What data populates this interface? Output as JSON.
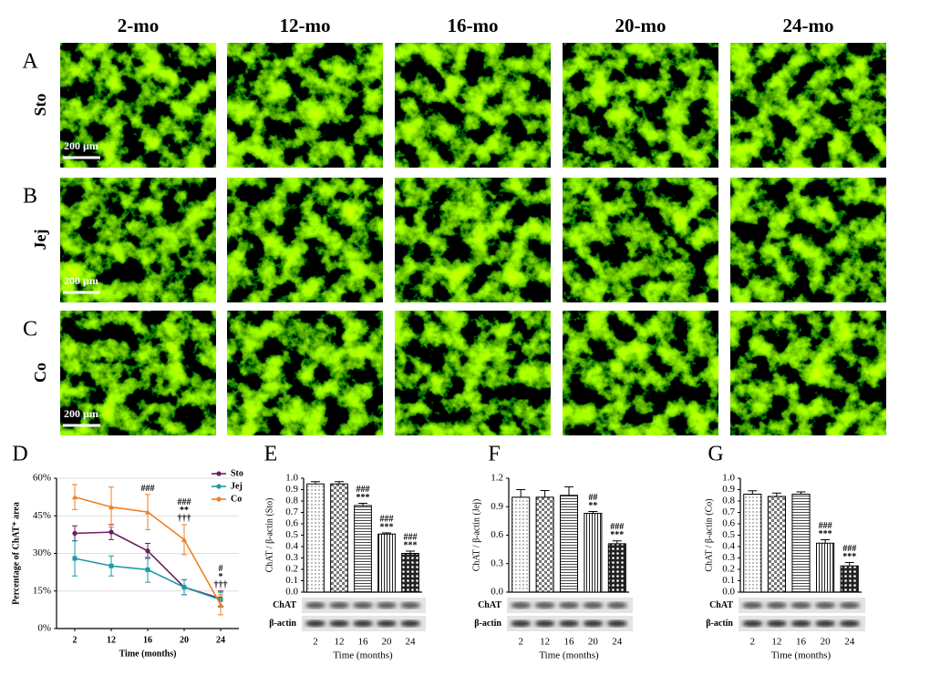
{
  "column_headers": [
    "2-mo",
    "12-mo",
    "16-mo",
    "20-mo",
    "24-mo"
  ],
  "rows": [
    {
      "letter": "A",
      "label": "Sto",
      "scale_bar": "200 µm"
    },
    {
      "letter": "B",
      "label": "Jej",
      "scale_bar": "200 µm"
    },
    {
      "letter": "C",
      "label": "Co",
      "scale_bar": "200 µm"
    }
  ],
  "chart_data": [
    {
      "type": "line",
      "panel": "D",
      "ylabel": "Percentage of ChAT⁺ area",
      "xlabel": "Time (months)",
      "categories": [
        "2",
        "12",
        "16",
        "20",
        "24"
      ],
      "ylim": [
        0,
        60
      ],
      "yticks": [
        {
          "value": 0,
          "label": "0%"
        },
        {
          "value": 15,
          "label": "15%"
        },
        {
          "value": 30,
          "label": "30%"
        },
        {
          "value": 45,
          "label": "45%"
        },
        {
          "value": 60,
          "label": "60%"
        }
      ],
      "grid": true,
      "legend": "upper right",
      "series": [
        {
          "name": "Sto",
          "color": "#6b1f5e",
          "marker": "circle",
          "values": [
            38,
            38.5,
            31,
            16.5,
            12
          ],
          "error": [
            3,
            3,
            3,
            3,
            3
          ]
        },
        {
          "name": "Jej",
          "color": "#1a9ba3",
          "marker": "square",
          "values": [
            28,
            25,
            23.5,
            16.5,
            11.5
          ],
          "error": [
            7,
            4,
            5,
            3,
            3
          ]
        },
        {
          "name": "Co",
          "color": "#f07f23",
          "marker": "triangle",
          "values": [
            52.5,
            48.5,
            46.5,
            35.5,
            9.5
          ],
          "error": [
            5,
            8,
            7,
            6,
            4
          ]
        }
      ],
      "annotations": [
        null,
        null,
        [
          "###"
        ],
        [
          "###",
          "**",
          "†††"
        ],
        [
          "#",
          "*",
          "†††"
        ]
      ]
    },
    {
      "type": "bar",
      "panel": "E",
      "ylabel": "ChAT / β-actin (Sto)",
      "xlabel": "Time (months)",
      "categories": [
        "2",
        "12",
        "16",
        "20",
        "24"
      ],
      "values": [
        0.95,
        0.95,
        0.76,
        0.51,
        0.34
      ],
      "error": [
        0.02,
        0.02,
        0.02,
        0.01,
        0.02
      ],
      "color": "#000000",
      "ylim": [
        0,
        1.0
      ],
      "yticks": [
        {
          "value": 0,
          "label": "0.0"
        },
        0.1,
        0.2,
        0.3,
        0.4,
        0.5,
        0.6,
        0.7,
        0.8,
        0.9,
        {
          "value": 1.0,
          "label": "1.0"
        }
      ],
      "annotations": [
        null,
        null,
        [
          "###",
          "***"
        ],
        [
          "###",
          "***"
        ],
        [
          "###",
          "***"
        ]
      ],
      "blot_labels": [
        "ChAT",
        "β-actin"
      ]
    },
    {
      "type": "bar",
      "panel": "F",
      "ylabel": "ChAT / β-actin (Jej)",
      "xlabel": "Time (months)",
      "categories": [
        "2",
        "12",
        "16",
        "20",
        "24"
      ],
      "values": [
        1.0,
        1.0,
        1.02,
        0.83,
        0.51
      ],
      "error": [
        0.08,
        0.07,
        0.09,
        0.02,
        0.03
      ],
      "color": "#000000",
      "ylim": [
        0,
        1.2
      ],
      "yticks": [
        {
          "value": 0,
          "label": "0.0"
        },
        0.3,
        0.6,
        0.9,
        1.2
      ],
      "annotations": [
        null,
        null,
        null,
        [
          "##",
          "**"
        ],
        [
          "###",
          "***"
        ]
      ],
      "blot_labels": [
        "ChAT",
        "β-actin"
      ]
    },
    {
      "type": "bar",
      "panel": "G",
      "ylabel": "ChAT / β-actin (Co)",
      "xlabel": "Time (months)",
      "categories": [
        "2",
        "12",
        "16",
        "20",
        "24"
      ],
      "values": [
        0.86,
        0.84,
        0.86,
        0.43,
        0.23
      ],
      "error": [
        0.03,
        0.03,
        0.02,
        0.03,
        0.03
      ],
      "color": "#000000",
      "ylim": [
        0,
        1.0
      ],
      "yticks": [
        {
          "value": 0,
          "label": "0.0"
        },
        0.1,
        0.2,
        0.3,
        0.4,
        0.5,
        0.6,
        0.7,
        0.8,
        0.9,
        {
          "value": 1.0,
          "label": "1.0"
        }
      ],
      "annotations": [
        null,
        null,
        null,
        [
          "###",
          "***"
        ],
        [
          "###",
          "***"
        ]
      ],
      "blot_labels": [
        "ChAT",
        "β-actin"
      ]
    }
  ]
}
